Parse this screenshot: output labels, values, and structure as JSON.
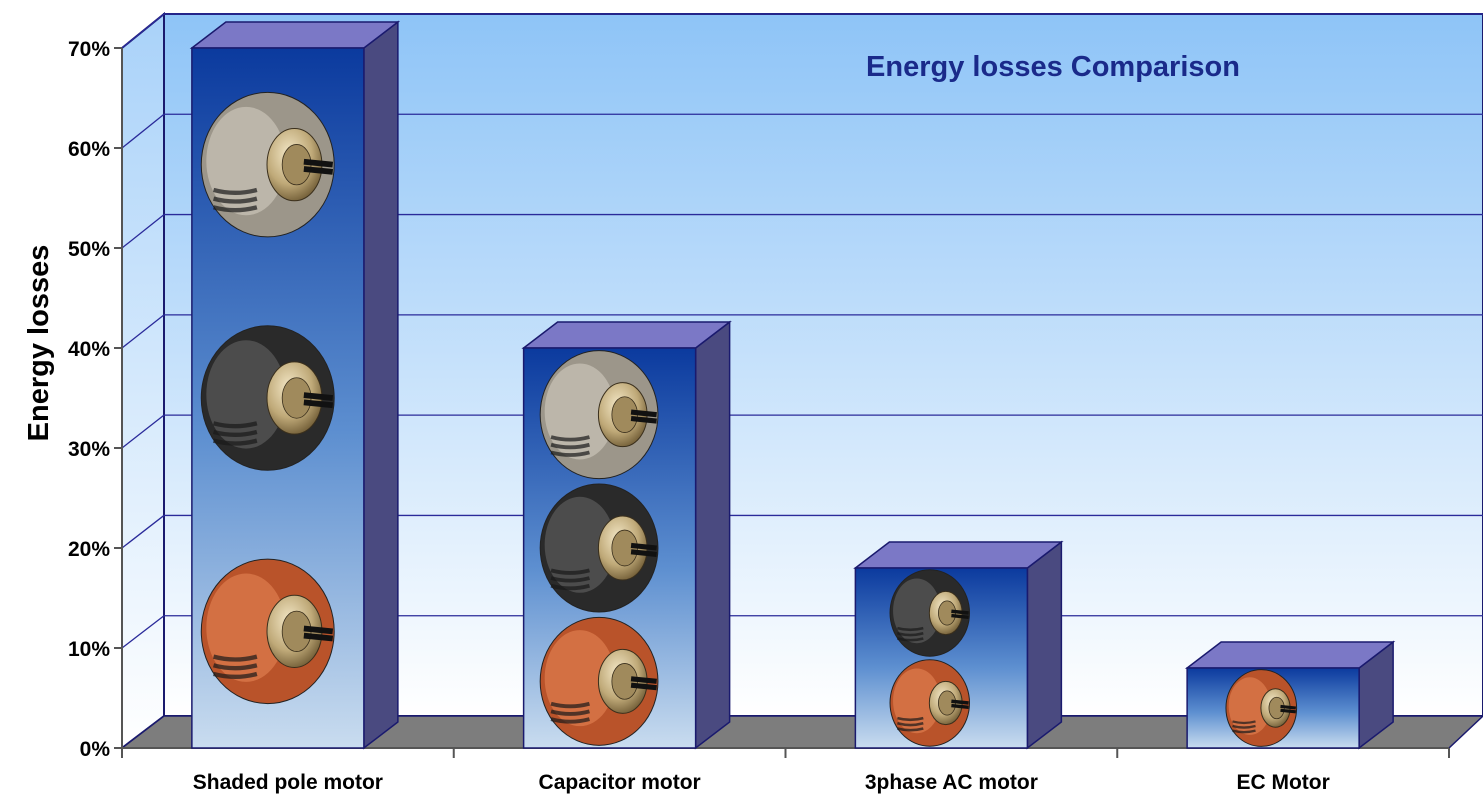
{
  "chart_data": {
    "type": "bar",
    "title": "Energy losses Comparison",
    "xlabel": "",
    "ylabel": "Energy losses",
    "categories": [
      "Shaded pole motor",
      "Capacitor motor",
      "3phase AC motor",
      "EC Motor"
    ],
    "values": [
      70,
      40,
      18,
      8
    ],
    "yticks": [
      "0%",
      "10%",
      "20%",
      "30%",
      "40%",
      "50%",
      "60%",
      "70%"
    ],
    "ylim": [
      0,
      70
    ],
    "grid": true,
    "legend": "none",
    "colors": {
      "title": "#1a2a8a",
      "bar_front_top": "#0b3a9e",
      "bar_front_bottom": "#bcd3ec",
      "bar_side": "#4a4a80",
      "bar_top": "#7b78c6",
      "bar_outline": "#1a1a6e",
      "wall_top": "#8ec4f7",
      "wall_bottom": "#ffffff",
      "floor": "#7d7d7d",
      "grid": "#2a2a9a",
      "motor_copper": "#b9532a",
      "motor_black": "#2a2a2a",
      "motor_grey": "#9c968a"
    },
    "motor_icons": [
      "fan-motor-icon",
      "fan-motor-icon",
      "fan-motor-icon",
      "fan-motor-icon"
    ]
  }
}
